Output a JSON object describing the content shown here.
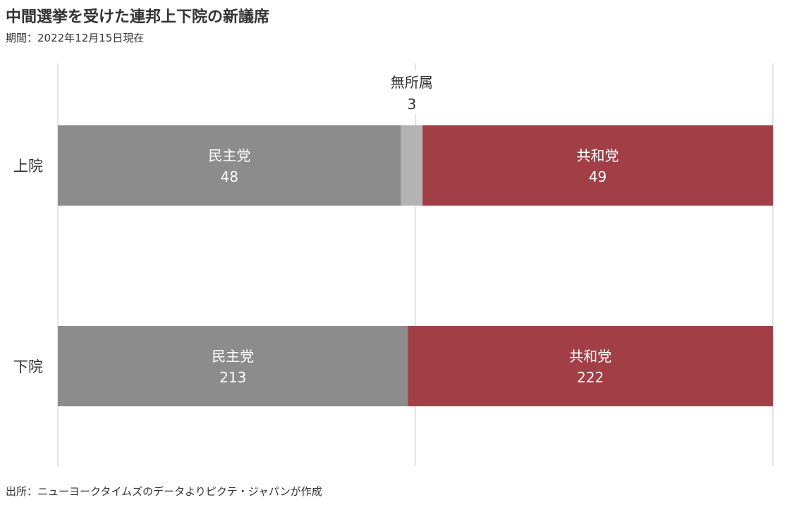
{
  "header": {
    "title": "中間選挙を受けた連邦上下院の新議席",
    "subtitle": "期間：2022年12月15日現在"
  },
  "footer": {
    "source": "出所：ニューヨークタイムズのデータよりピクテ・ジャパンが作成"
  },
  "chart_data": {
    "type": "bar",
    "orientation": "horizontal",
    "stacked": "100%",
    "categories": [
      "上院",
      "下院"
    ],
    "series": [
      {
        "name": "民主党",
        "values": [
          48,
          213
        ],
        "color": "#8c8c8c"
      },
      {
        "name": "無所属",
        "values": [
          3,
          0
        ],
        "color": "#b3b3b3"
      },
      {
        "name": "共和党",
        "values": [
          49,
          222
        ],
        "color": "#a23f46"
      }
    ],
    "annotation": {
      "label": "無所属",
      "value": "3"
    }
  }
}
